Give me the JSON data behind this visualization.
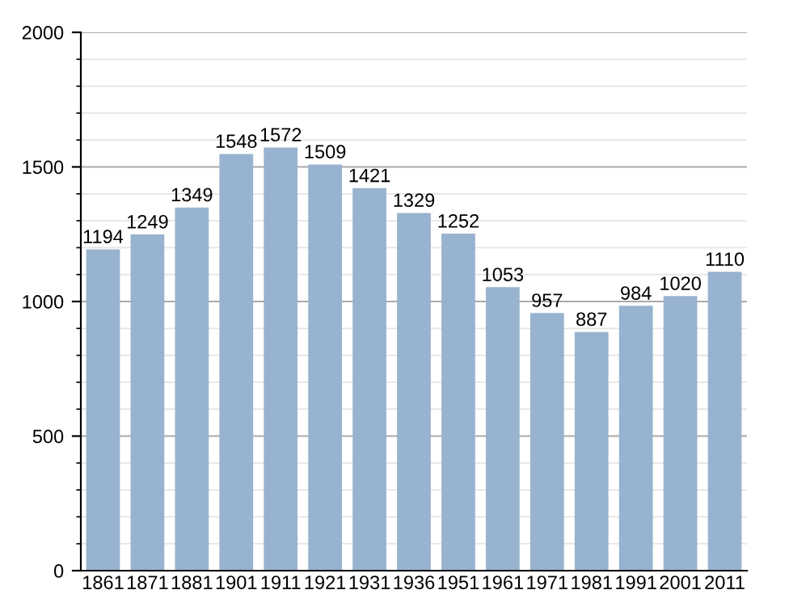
{
  "chart_data": {
    "type": "bar",
    "categories": [
      "1861",
      "1871",
      "1881",
      "1901",
      "1911",
      "1921",
      "1931",
      "1936",
      "1951",
      "1961",
      "1971",
      "1981",
      "1991",
      "2001",
      "2011"
    ],
    "values": [
      1194,
      1249,
      1349,
      1548,
      1572,
      1509,
      1421,
      1329,
      1252,
      1053,
      957,
      887,
      984,
      1020,
      1110
    ],
    "color": "#98b3cf",
    "ylim": [
      0,
      2000
    ],
    "yticks": [
      0,
      500,
      1000,
      1500,
      2000
    ],
    "grid": "y",
    "data_labels": true
  }
}
